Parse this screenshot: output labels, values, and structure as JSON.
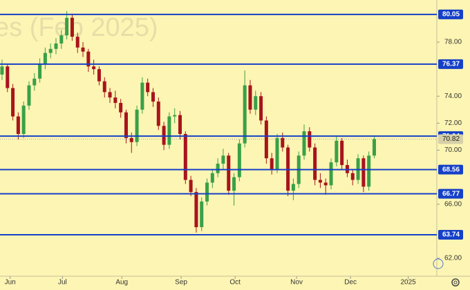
{
  "chart_data": {
    "type": "candlestick",
    "title": "es (Feb 2025)",
    "colors": {
      "up": "#3aa048",
      "down": "#a8141c",
      "level": "#1540c8",
      "last": "#9e9e9e",
      "background": "#fdf5b3"
    },
    "ylim": [
      60.67,
      81.12
    ],
    "yticks": [
      {
        "value": 62,
        "label": "62.00"
      },
      {
        "value": 66,
        "label": "66.00"
      },
      {
        "value": 70,
        "label": "70.00"
      },
      {
        "value": 72,
        "label": "72.00"
      },
      {
        "value": 74,
        "label": "74.00"
      },
      {
        "value": 78,
        "label": "78.00"
      }
    ],
    "xlim": [
      -0.38,
      80.6
    ],
    "xticks": [
      {
        "value": 1.5,
        "label": "Jun"
      },
      {
        "value": 11.2,
        "label": "Jul"
      },
      {
        "value": 22.2,
        "label": "Aug"
      },
      {
        "value": 33.2,
        "label": "Sep"
      },
      {
        "value": 43.2,
        "label": "Oct"
      },
      {
        "value": 54.6,
        "label": "Nov"
      },
      {
        "value": 64.6,
        "label": "Dec"
      },
      {
        "value": 75.3,
        "label": "2025"
      }
    ],
    "grid": false,
    "levels": [
      80.05,
      76.37,
      71.04,
      68.56,
      66.77,
      63.74
    ],
    "last_price": 70.82,
    "candles": [
      [
        75.6,
        76.7,
        75.2,
        76.2
      ],
      [
        76.2,
        76.4,
        74.3,
        74.6
      ],
      [
        74.6,
        74.9,
        72.2,
        72.5
      ],
      [
        72.5,
        72.8,
        70.8,
        71.2
      ],
      [
        71.2,
        73.6,
        70.9,
        73.3
      ],
      [
        73.3,
        75.1,
        73.0,
        74.8
      ],
      [
        74.8,
        75.7,
        74.4,
        75.3
      ],
      [
        75.3,
        76.8,
        75.0,
        76.4
      ],
      [
        76.4,
        77.6,
        76.0,
        77.2
      ],
      [
        77.2,
        77.9,
        76.8,
        77.5
      ],
      [
        77.5,
        78.3,
        77.1,
        77.9
      ],
      [
        77.9,
        78.9,
        77.5,
        78.5
      ],
      [
        78.5,
        80.3,
        78.2,
        79.8
      ],
      [
        79.8,
        80.1,
        78.1,
        78.4
      ],
      [
        78.4,
        78.7,
        77.2,
        77.6
      ],
      [
        77.6,
        78.0,
        76.9,
        77.3
      ],
      [
        77.3,
        77.5,
        75.8,
        76.2
      ],
      [
        76.2,
        76.7,
        75.6,
        76.0
      ],
      [
        76.0,
        76.2,
        74.8,
        75.1
      ],
      [
        75.1,
        75.4,
        73.9,
        74.3
      ],
      [
        74.3,
        74.6,
        73.5,
        73.9
      ],
      [
        73.9,
        74.4,
        73.1,
        73.5
      ],
      [
        73.5,
        73.8,
        72.4,
        72.8
      ],
      [
        72.8,
        73.0,
        70.5,
        70.9
      ],
      [
        70.9,
        71.3,
        69.8,
        70.6
      ],
      [
        70.6,
        73.3,
        70.3,
        73.0
      ],
      [
        73.0,
        75.4,
        72.7,
        75.0
      ],
      [
        75.0,
        75.3,
        74.0,
        74.3
      ],
      [
        74.3,
        74.6,
        73.2,
        73.6
      ],
      [
        73.6,
        73.9,
        71.5,
        71.8
      ],
      [
        71.8,
        72.1,
        70.0,
        70.4
      ],
      [
        70.4,
        72.8,
        70.1,
        72.5
      ],
      [
        72.5,
        73.1,
        72.0,
        72.6
      ],
      [
        72.6,
        72.9,
        70.8,
        71.2
      ],
      [
        71.2,
        71.4,
        67.5,
        67.8
      ],
      [
        67.8,
        68.1,
        66.6,
        66.9
      ],
      [
        66.9,
        67.2,
        63.9,
        64.3
      ],
      [
        64.3,
        66.5,
        64.0,
        66.2
      ],
      [
        66.2,
        67.9,
        65.9,
        67.6
      ],
      [
        67.6,
        68.6,
        67.2,
        68.3
      ],
      [
        68.3,
        69.4,
        68.0,
        69.0
      ],
      [
        69.0,
        70.1,
        68.6,
        69.6
      ],
      [
        69.6,
        69.8,
        66.7,
        67.0
      ],
      [
        67.0,
        68.3,
        65.9,
        68.0
      ],
      [
        68.0,
        70.8,
        67.7,
        70.5
      ],
      [
        70.5,
        75.9,
        70.2,
        74.8
      ],
      [
        74.8,
        75.2,
        72.7,
        73.0
      ],
      [
        73.0,
        74.4,
        72.6,
        74.0
      ],
      [
        74.0,
        74.3,
        71.9,
        72.2
      ],
      [
        72.2,
        72.5,
        69.0,
        69.4
      ],
      [
        69.4,
        69.8,
        68.2,
        68.6
      ],
      [
        68.6,
        71.2,
        68.3,
        70.9
      ],
      [
        70.9,
        71.3,
        69.9,
        70.2
      ],
      [
        70.2,
        70.4,
        66.6,
        67.0
      ],
      [
        67.0,
        67.9,
        66.3,
        67.5
      ],
      [
        67.5,
        69.9,
        67.2,
        69.6
      ],
      [
        69.6,
        71.9,
        69.3,
        71.4
      ],
      [
        71.4,
        71.7,
        69.9,
        70.2
      ],
      [
        70.2,
        70.5,
        67.4,
        67.8
      ],
      [
        67.8,
        68.3,
        67.2,
        67.6
      ],
      [
        67.6,
        67.9,
        66.7,
        67.4
      ],
      [
        67.4,
        69.4,
        67.1,
        69.1
      ],
      [
        69.1,
        71.0,
        68.8,
        70.7
      ],
      [
        70.7,
        70.9,
        68.6,
        68.9
      ],
      [
        68.9,
        69.3,
        68.0,
        68.3
      ],
      [
        68.3,
        68.6,
        67.4,
        67.8
      ],
      [
        67.8,
        69.7,
        67.5,
        69.4
      ],
      [
        69.4,
        69.6,
        66.9,
        67.3
      ],
      [
        67.3,
        69.9,
        67.0,
        69.6
      ],
      [
        69.6,
        71.1,
        69.4,
        70.82
      ]
    ]
  }
}
